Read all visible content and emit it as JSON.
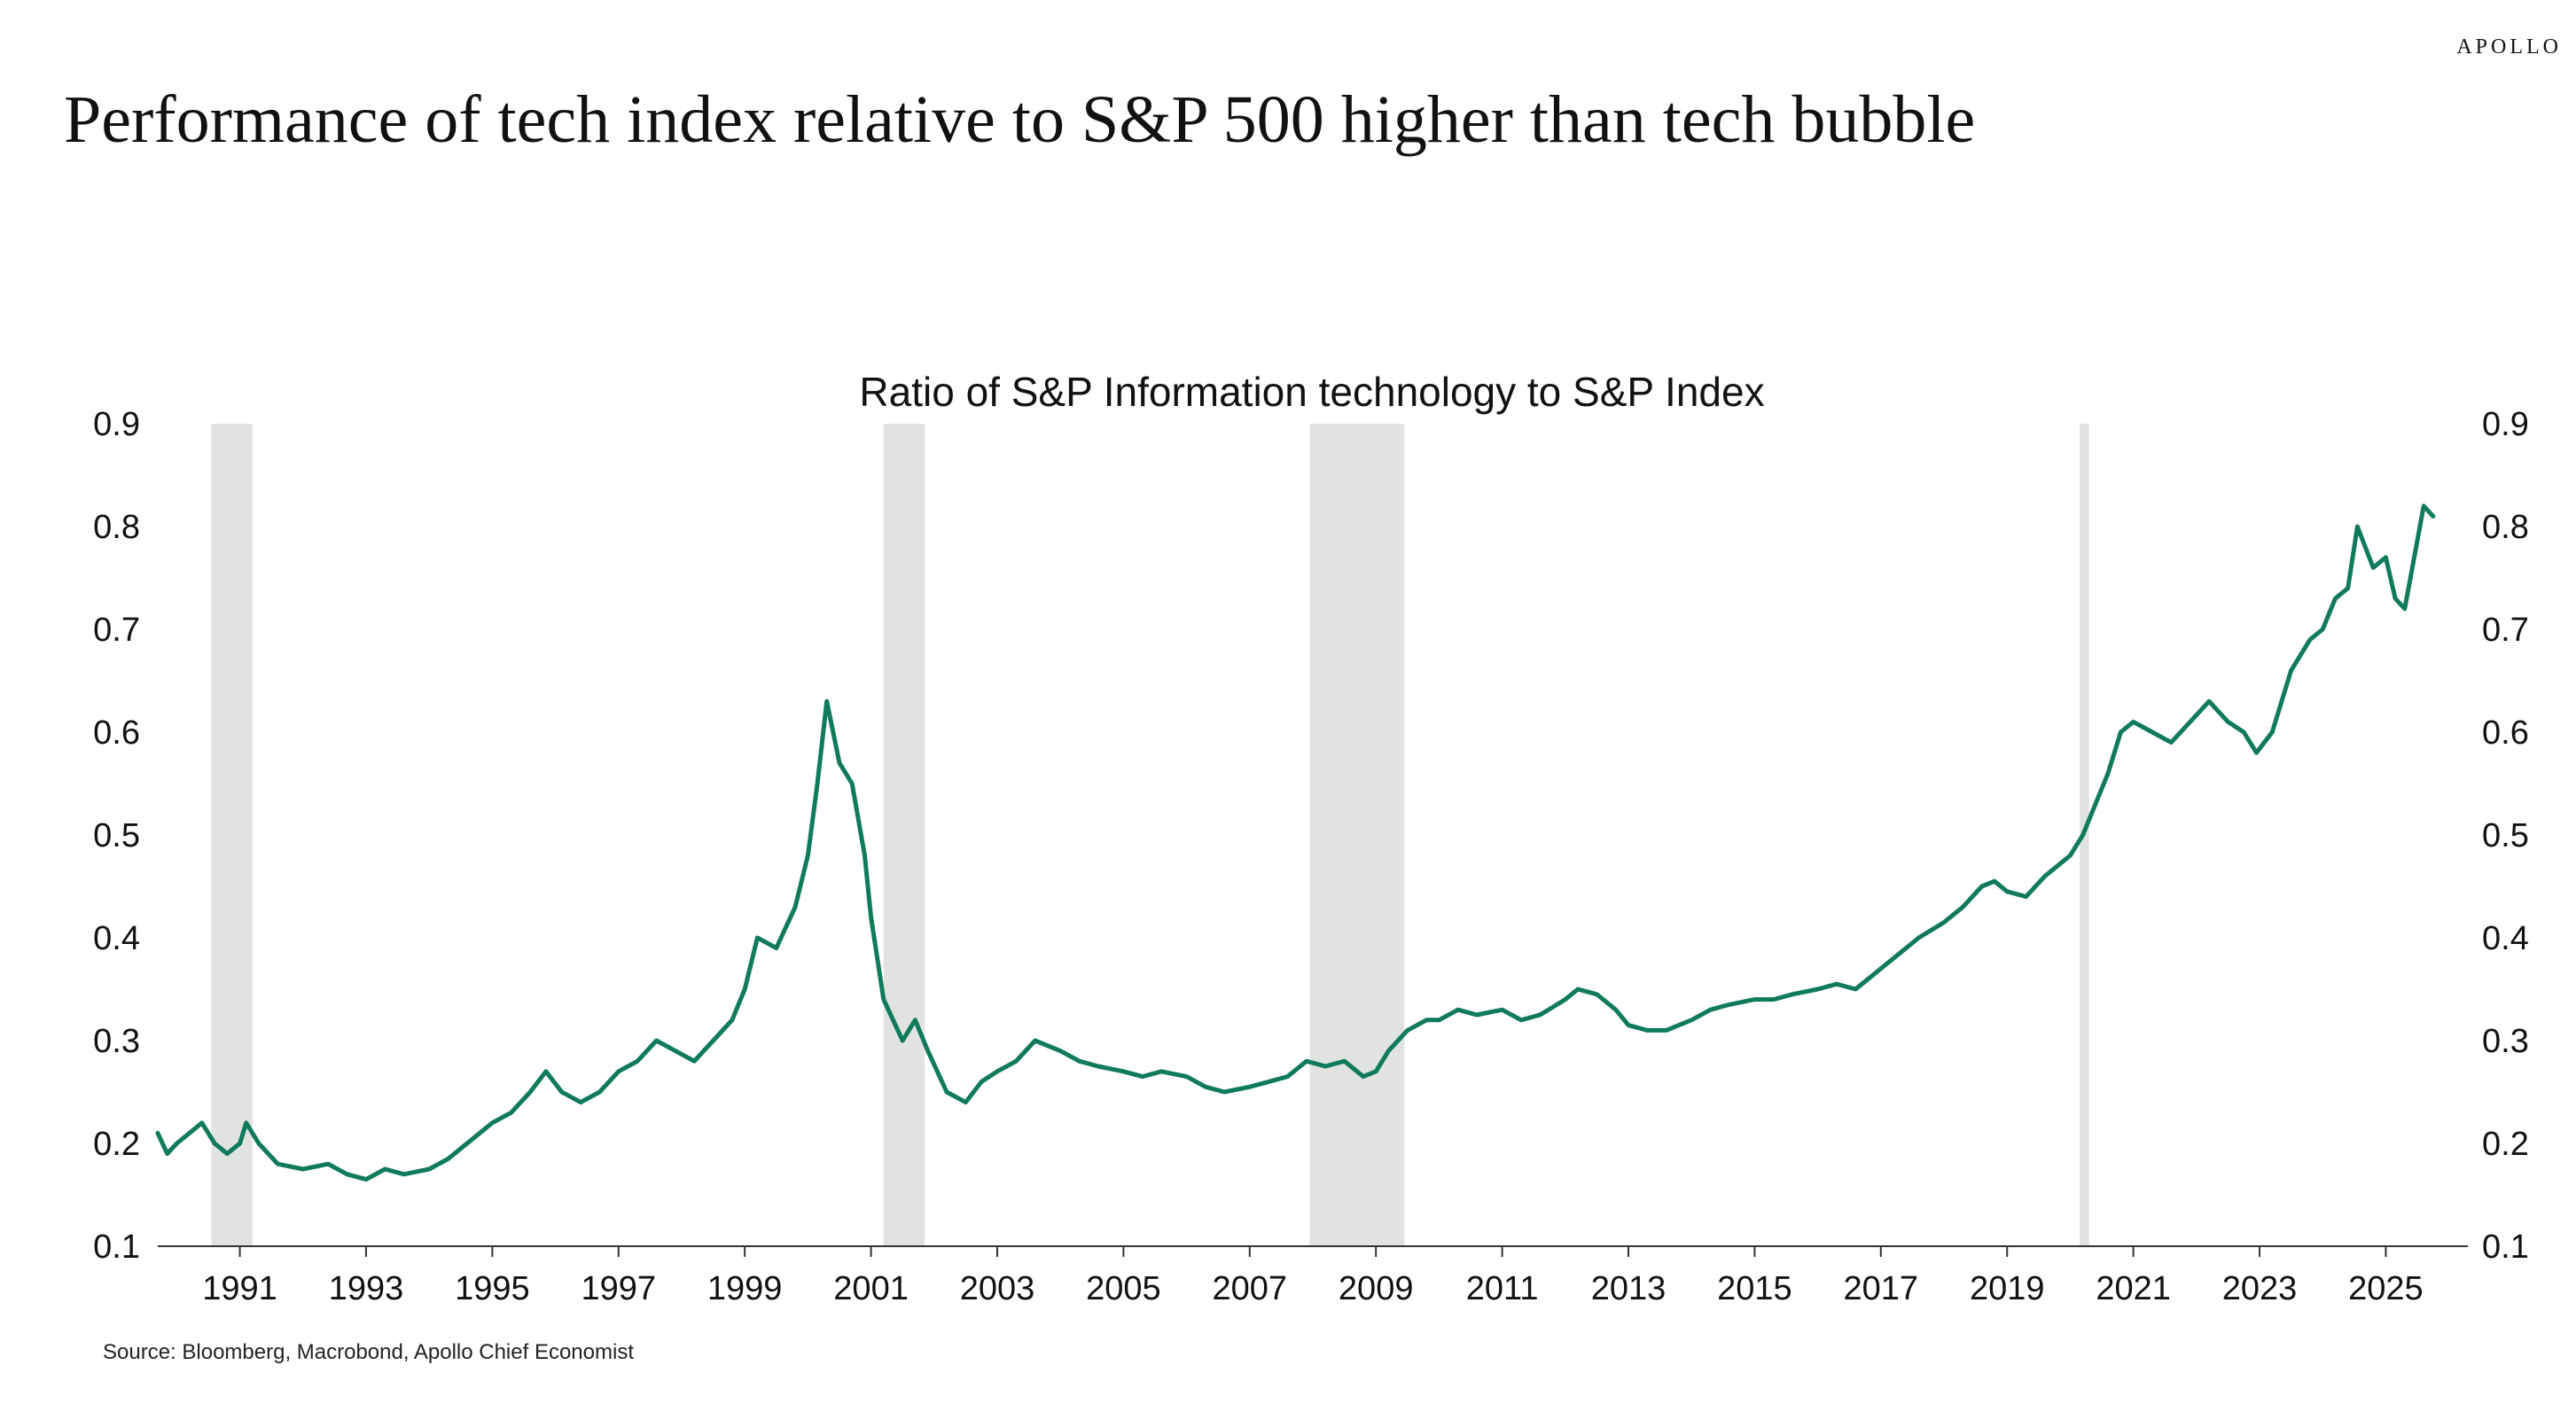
{
  "brand": "APOLLO",
  "headline": "Performance of tech index relative to S&P 500 higher than tech bubble",
  "source": "Source: Bloomberg, Macrobond, Apollo Chief Economist",
  "colors": {
    "line": "#0f7a5c",
    "recession_band": "#e1e3e1",
    "axis": "#333333",
    "text": "#111111"
  },
  "chart_data": {
    "type": "line",
    "title": "Ratio of S&P Information technology to S&P Index",
    "xlabel": "",
    "ylabel": "",
    "xlim": [
      1989.7,
      2026.3
    ],
    "ylim": [
      0.1,
      0.9
    ],
    "y_ticks": [
      0.1,
      0.2,
      0.3,
      0.4,
      0.5,
      0.6,
      0.7,
      0.8,
      0.9
    ],
    "y_tick_labels": [
      "0.1",
      "0.2",
      "0.3",
      "0.4",
      "0.5",
      "0.6",
      "0.7",
      "0.8",
      "0.9"
    ],
    "y_axis_sides": [
      "left",
      "right"
    ],
    "x_ticks": [
      1991,
      1993,
      1995,
      1997,
      1999,
      2001,
      2003,
      2005,
      2007,
      2009,
      2011,
      2013,
      2015,
      2017,
      2019,
      2021,
      2023,
      2025
    ],
    "x_tick_labels": [
      "1991",
      "1993",
      "1995",
      "1997",
      "1999",
      "2001",
      "2003",
      "2005",
      "2007",
      "2009",
      "2011",
      "2013",
      "2015",
      "2017",
      "2019",
      "2021",
      "2023",
      "2025"
    ],
    "grid": false,
    "legend": "none",
    "shaded_periods": [
      [
        1990.55,
        1991.2
      ],
      [
        2001.2,
        2001.85
      ],
      [
        2007.95,
        2009.45
      ],
      [
        2020.15,
        2020.3
      ]
    ],
    "series": [
      {
        "x": [
          1989.7,
          1989.85,
          1990.0,
          1990.2,
          1990.4,
          1990.6,
          1990.8,
          1991.0,
          1991.1,
          1991.3,
          1991.6,
          1992.0,
          1992.4,
          1992.7,
          1993.0,
          1993.3,
          1993.6,
          1994.0,
          1994.3,
          1994.6,
          1995.0,
          1995.3,
          1995.6,
          1995.85,
          1996.1,
          1996.4,
          1996.7,
          1997.0,
          1997.3,
          1997.6,
          1997.9,
          1998.2,
          1998.5,
          1998.8,
          1999.0,
          1999.2,
          1999.5,
          1999.8,
          2000.0,
          2000.15,
          2000.3,
          2000.5,
          2000.7,
          2000.9,
          2001.0,
          2001.2,
          2001.5,
          2001.7,
          2001.9,
          2002.2,
          2002.5,
          2002.75,
          2003.0,
          2003.3,
          2003.6,
          2004.0,
          2004.3,
          2004.6,
          2005.0,
          2005.3,
          2005.6,
          2006.0,
          2006.3,
          2006.6,
          2007.0,
          2007.3,
          2007.6,
          2007.9,
          2008.2,
          2008.5,
          2008.8,
          2009.0,
          2009.2,
          2009.5,
          2009.8,
          2010.0,
          2010.3,
          2010.6,
          2011.0,
          2011.3,
          2011.6,
          2012.0,
          2012.2,
          2012.5,
          2012.8,
          2013.0,
          2013.3,
          2013.6,
          2014.0,
          2014.3,
          2014.6,
          2015.0,
          2015.3,
          2015.6,
          2016.0,
          2016.3,
          2016.6,
          2017.0,
          2017.3,
          2017.6,
          2018.0,
          2018.3,
          2018.6,
          2018.8,
          2019.0,
          2019.3,
          2019.6,
          2020.0,
          2020.2,
          2020.4,
          2020.6,
          2020.8,
          2021.0,
          2021.3,
          2021.6,
          2021.9,
          2022.2,
          2022.5,
          2022.75,
          2022.95,
          2023.2,
          2023.5,
          2023.8,
          2024.0,
          2024.2,
          2024.4,
          2024.55,
          2024.8,
          2025.0,
          2025.15,
          2025.3,
          2025.45,
          2025.6,
          2025.75
        ],
        "y": [
          0.21,
          0.19,
          0.2,
          0.21,
          0.22,
          0.2,
          0.19,
          0.2,
          0.22,
          0.2,
          0.18,
          0.175,
          0.18,
          0.17,
          0.165,
          0.175,
          0.17,
          0.175,
          0.185,
          0.2,
          0.22,
          0.23,
          0.25,
          0.27,
          0.25,
          0.24,
          0.25,
          0.27,
          0.28,
          0.3,
          0.29,
          0.28,
          0.3,
          0.32,
          0.35,
          0.4,
          0.39,
          0.43,
          0.48,
          0.55,
          0.63,
          0.57,
          0.55,
          0.48,
          0.42,
          0.34,
          0.3,
          0.32,
          0.29,
          0.25,
          0.24,
          0.26,
          0.27,
          0.28,
          0.3,
          0.29,
          0.28,
          0.275,
          0.27,
          0.265,
          0.27,
          0.265,
          0.255,
          0.25,
          0.255,
          0.26,
          0.265,
          0.28,
          0.275,
          0.28,
          0.265,
          0.27,
          0.29,
          0.31,
          0.32,
          0.32,
          0.33,
          0.325,
          0.33,
          0.32,
          0.325,
          0.34,
          0.35,
          0.345,
          0.33,
          0.315,
          0.31,
          0.31,
          0.32,
          0.33,
          0.335,
          0.34,
          0.34,
          0.345,
          0.35,
          0.355,
          0.35,
          0.37,
          0.385,
          0.4,
          0.415,
          0.43,
          0.45,
          0.455,
          0.445,
          0.44,
          0.46,
          0.48,
          0.5,
          0.53,
          0.56,
          0.6,
          0.61,
          0.6,
          0.59,
          0.61,
          0.63,
          0.61,
          0.6,
          0.58,
          0.6,
          0.66,
          0.69,
          0.7,
          0.73,
          0.74,
          0.8,
          0.76,
          0.77,
          0.73,
          0.72,
          0.77,
          0.82,
          0.81
        ]
      }
    ]
  }
}
